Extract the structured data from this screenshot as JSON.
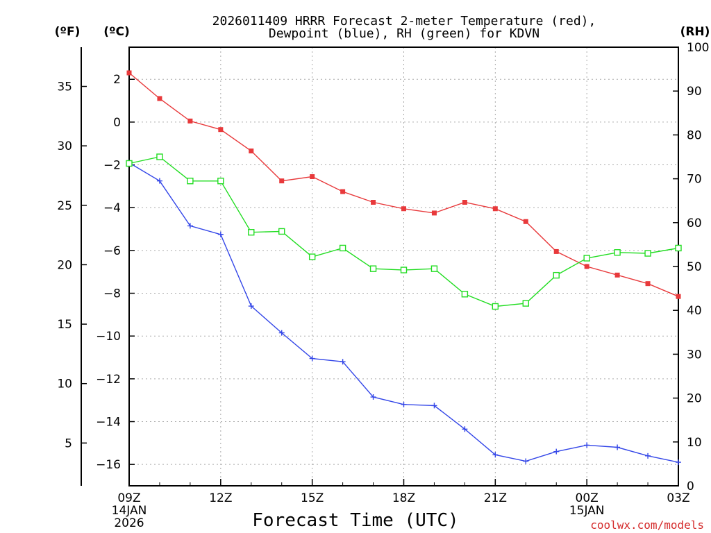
{
  "chart_data": {
    "type": "line",
    "title_line1": "2026011409 HRRR Forecast 2-meter Temperature (red),",
    "title_line2": "Dewpoint (blue), RH (green) for KDVN",
    "xlabel": "Forecast Time (UTC)",
    "credit": "coolwx.com/models",
    "units": {
      "fahrenheit": "(ºF)",
      "celsius": "(ºC)",
      "rh": "(RH)"
    },
    "x_hours": [
      0,
      1,
      2,
      3,
      4,
      5,
      6,
      7,
      8,
      9,
      10,
      11,
      12,
      13,
      14,
      15,
      16,
      17,
      18
    ],
    "x_ticks": [
      {
        "hour": 0,
        "label": "09Z",
        "sub1": "14JAN",
        "sub2": "2026"
      },
      {
        "hour": 3,
        "label": "12Z",
        "sub1": "",
        "sub2": ""
      },
      {
        "hour": 6,
        "label": "15Z",
        "sub1": "",
        "sub2": ""
      },
      {
        "hour": 9,
        "label": "18Z",
        "sub1": "",
        "sub2": ""
      },
      {
        "hour": 12,
        "label": "21Z",
        "sub1": "",
        "sub2": ""
      },
      {
        "hour": 15,
        "label": "00Z",
        "sub1": "15JAN",
        "sub2": ""
      },
      {
        "hour": 18,
        "label": "03Z",
        "sub1": "",
        "sub2": ""
      }
    ],
    "ylim_c": [
      -17,
      3.5
    ],
    "ylim_rh": [
      0,
      100
    ],
    "c_ticks": [
      2,
      0,
      -2,
      -4,
      -6,
      -8,
      -10,
      -12,
      -14,
      -16
    ],
    "c_tick_labels": [
      "2",
      "0",
      "−2",
      "−4",
      "−6",
      "−8",
      "−10",
      "−12",
      "−14",
      "−16"
    ],
    "f_ticks": [
      35,
      30,
      25,
      20,
      15,
      10,
      5
    ],
    "rh_ticks": [
      0,
      10,
      20,
      30,
      40,
      50,
      60,
      70,
      80,
      90,
      100
    ],
    "series": [
      {
        "name": "2-meter Temperature (°C)",
        "axis": "c",
        "color": "#e8393b",
        "marker": "filled-square",
        "values": [
          2.3,
          1.1,
          0.05,
          -0.35,
          -1.35,
          -2.75,
          -2.55,
          -3.25,
          -3.75,
          -4.05,
          -4.25,
          -3.75,
          -4.05,
          -4.65,
          -6.05,
          -6.75,
          -7.15,
          -7.55,
          -8.15
        ]
      },
      {
        "name": "Dewpoint (°C)",
        "axis": "c",
        "color": "#3346e8",
        "marker": "plus",
        "values": [
          -1.9,
          -2.75,
          -4.85,
          -5.25,
          -8.6,
          -9.85,
          -11.05,
          -11.2,
          -12.85,
          -13.2,
          -13.25,
          -14.35,
          -15.55,
          -15.85,
          -15.4,
          -15.1,
          -15.2,
          -15.6,
          -15.9
        ]
      },
      {
        "name": "Relative Humidity (%)",
        "axis": "rh",
        "color": "#22dd22",
        "marker": "open-square",
        "values": [
          73.5,
          75,
          69.5,
          69.5,
          57.8,
          58,
          52.2,
          54.2,
          49.5,
          49.2,
          49.5,
          43.7,
          40.9,
          41.6,
          48,
          51.9,
          53.2,
          53,
          54.2
        ]
      }
    ]
  }
}
